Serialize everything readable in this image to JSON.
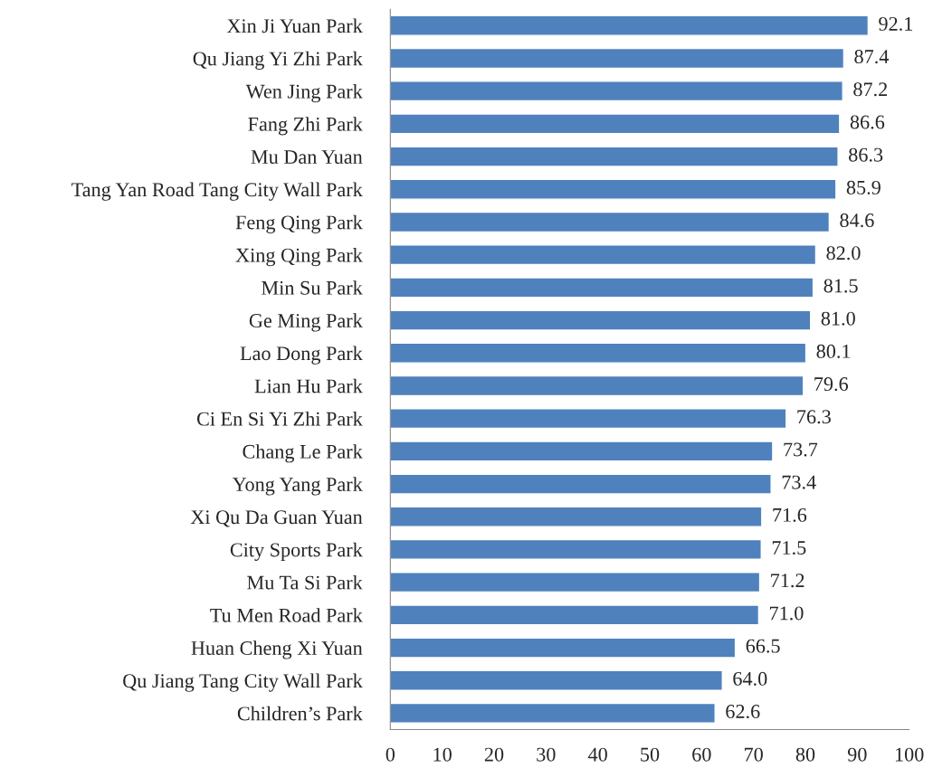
{
  "chart_data": {
    "type": "bar",
    "orientation": "horizontal",
    "categories": [
      "Xin Ji Yuan Park",
      "Qu Jiang Yi Zhi Park",
      "Wen Jing Park",
      "Fang Zhi Park",
      "Mu Dan Yuan",
      "Tang Yan Road Tang City Wall Park",
      "Feng Qing Park",
      "Xing Qing Park",
      "Min Su Park",
      "Ge Ming Park",
      "Lao Dong Park",
      "Lian Hu Park",
      "Ci En Si Yi Zhi Park",
      "Chang Le Park",
      "Yong Yang Park",
      "Xi Qu Da Guan Yuan",
      "City Sports Park",
      "Mu Ta Si Park",
      "Tu Men Road Park",
      "Huan Cheng Xi Yuan",
      "Qu Jiang Tang City Wall Park",
      "Children’s Park"
    ],
    "values": [
      92.1,
      87.4,
      87.2,
      86.6,
      86.3,
      85.9,
      84.6,
      82.0,
      81.5,
      81.0,
      80.1,
      79.6,
      76.3,
      73.7,
      73.4,
      71.6,
      71.5,
      71.2,
      71.0,
      66.5,
      64.0,
      62.6
    ],
    "value_labels": [
      "92.1",
      "87.4",
      "87.2",
      "86.6",
      "86.3",
      "85.9",
      "84.6",
      "82.0",
      "81.5",
      "81.0",
      "80.1",
      "79.6",
      "76.3",
      "73.7",
      "73.4",
      "71.6",
      "71.5",
      "71.2",
      "71.0",
      "66.5",
      "64.0",
      "62.6"
    ],
    "color": "#4f81bd",
    "xlim": [
      0,
      100
    ],
    "xticks": [
      0,
      10,
      20,
      30,
      40,
      50,
      60,
      70,
      80,
      90,
      100
    ],
    "grid": false,
    "legend": false
  }
}
